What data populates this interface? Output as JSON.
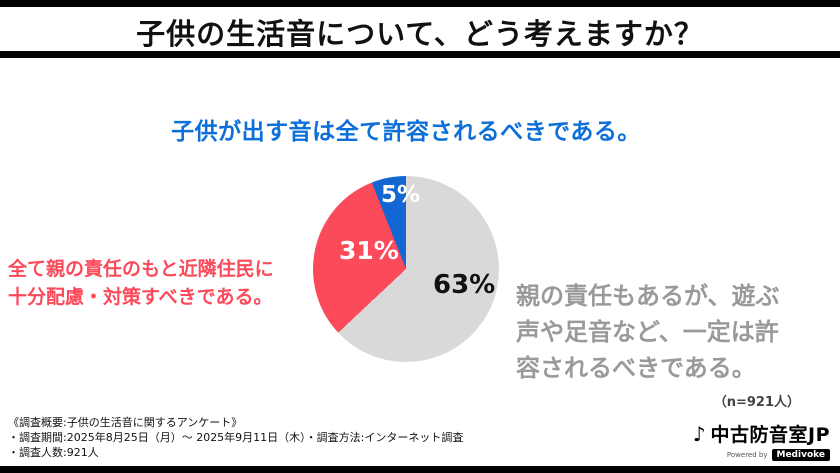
{
  "header": {
    "title": "子供の生活音について、どう考えますか？"
  },
  "chart_data": {
    "type": "pie",
    "title": "子供の生活音について、どう考えますか？",
    "n_label": "(n=921人)",
    "slices": [
      {
        "label": "親の責任もあるが、遊ぶ声や足音など、一定は許容されるべきである。",
        "value": 63,
        "pct_label": "63%",
        "color": "#d9d9d9"
      },
      {
        "label": "全て親の責任のもと近隣住民に十分配慮・対策すべきである。",
        "value": 31,
        "pct_label": "31%",
        "color": "#fb4b5b"
      },
      {
        "label": "子供が出す音は全て許容されるべきである。",
        "value": 5,
        "pct_label": "5%",
        "color": "#1467d2"
      }
    ],
    "legend_position": "around-pie",
    "start_angle_deg": 0,
    "direction": "clockwise"
  },
  "labels": {
    "blue_heading": "子供が出す音は全て許容されるべきである。",
    "red_label": "全て親の責任のもと近隣住民に\n十分配慮・対策すべきである。",
    "gray_label": "親の責任もあるが、遊ぶ\n声や足音など、一定は許\n容されるべきである。",
    "n_label": "（n=921人）"
  },
  "footer": {
    "line1": "《調査概要:子供の生活音に関するアンケート》",
    "line2": "・調査期間:2025年8月25日（月）〜 2025年9月11日（木）・調査方法:インターネット調査",
    "line3": "・調査人数:921人"
  },
  "logo": {
    "icon": "music-note-icon",
    "name": "中古防音室JP",
    "powered_prefix": "Powered by",
    "powered_brand": "Medivoke"
  }
}
